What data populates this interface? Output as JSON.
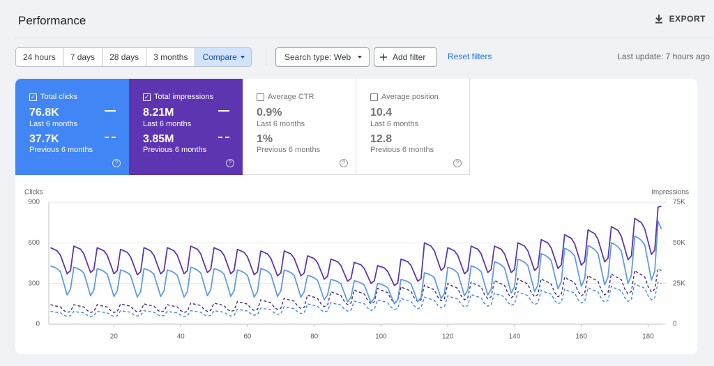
{
  "header": {
    "title": "Performance",
    "export": "EXPORT"
  },
  "toolbar": {
    "date_ranges": [
      "24 hours",
      "7 days",
      "28 days",
      "3 months",
      "Compare"
    ],
    "search_type": "Search type: Web",
    "add_filter": "Add filter",
    "reset_filters": "Reset filters",
    "last_update": "Last update: 7 hours ago"
  },
  "metrics": [
    {
      "label": "Total clicks",
      "value": "76.8K",
      "period": "Last 6 months",
      "previous_value": "37.7K",
      "previous_period": "Previous 6 months",
      "selected": true,
      "color": "#4285f4"
    },
    {
      "label": "Total impressions",
      "value": "8.21M",
      "period": "Last 6 months",
      "previous_value": "3.85M",
      "previous_period": "Previous 6 months",
      "selected": true,
      "color": "#5e35b1"
    },
    {
      "label": "Average CTR",
      "value": "0.9%",
      "period": "Last 6 months",
      "previous_value": "1%",
      "previous_period": "Previous 6 months",
      "selected": false
    },
    {
      "label": "Average position",
      "value": "10.4",
      "period": "Last 6 months",
      "previous_value": "12.8",
      "previous_period": "Previous 6 months",
      "selected": false
    }
  ],
  "chart_data": {
    "type": "line",
    "y_label": "Clicks",
    "y2_label": "Impressions",
    "grid": true,
    "xlim": [
      0.5,
      184.5
    ],
    "xticks": [
      20,
      40,
      60,
      80,
      100,
      120,
      140,
      160,
      180
    ],
    "ylim": [
      0,
      900
    ],
    "yticks": [
      0,
      300,
      600,
      900
    ],
    "y2lim": [
      0,
      75000
    ],
    "y2ticks": [
      0,
      {
        "value": 25000,
        "label": "25K"
      },
      {
        "value": 50000,
        "label": "50K"
      },
      {
        "value": 75000,
        "label": "75K"
      }
    ],
    "x": [
      1,
      2,
      3,
      4,
      5,
      6,
      7,
      8,
      9,
      10,
      11,
      12,
      13,
      14,
      15,
      16,
      17,
      18,
      19,
      20,
      21,
      22,
      23,
      24,
      25,
      26,
      27,
      28,
      29,
      30,
      31,
      32,
      33,
      34,
      35,
      36,
      37,
      38,
      39,
      40,
      41,
      42,
      43,
      44,
      45,
      46,
      47,
      48,
      49,
      50,
      51,
      52,
      53,
      54,
      55,
      56,
      57,
      58,
      59,
      60,
      61,
      62,
      63,
      64,
      65,
      66,
      67,
      68,
      69,
      70,
      71,
      72,
      73,
      74,
      75,
      76,
      77,
      78,
      79,
      80,
      81,
      82,
      83,
      84,
      85,
      86,
      87,
      88,
      89,
      90,
      91,
      92,
      93,
      94,
      95,
      96,
      97,
      98,
      99,
      100,
      101,
      102,
      103,
      104,
      105,
      106,
      107,
      108,
      109,
      110,
      111,
      112,
      113,
      114,
      115,
      116,
      117,
      118,
      119,
      120,
      121,
      122,
      123,
      124,
      125,
      126,
      127,
      128,
      129,
      130,
      131,
      132,
      133,
      134,
      135,
      136,
      137,
      138,
      139,
      140,
      141,
      142,
      143,
      144,
      145,
      146,
      147,
      148,
      149,
      150,
      151,
      152,
      153,
      154,
      155,
      156,
      157,
      158,
      159,
      160,
      161,
      162,
      163,
      164,
      165,
      166,
      167,
      168,
      169,
      170,
      171,
      172,
      173,
      174,
      175,
      176,
      177,
      178,
      179,
      180,
      181,
      182,
      183,
      184
    ],
    "series": [
      {
        "color": "#3f2a8c",
        "style": "dashed",
        "axis": "y2",
        "values": [
          12000,
          11400,
          11000,
          10600,
          8400,
          7200,
          7800,
          12000,
          11400,
          11000,
          10600,
          8400,
          7200,
          7800,
          12000,
          11400,
          11000,
          10600,
          8400,
          7200,
          7800,
          12500,
          11900,
          11500,
          11000,
          8800,
          7500,
          8100,
          12500,
          11900,
          11500,
          11000,
          8800,
          7500,
          8100,
          12000,
          11400,
          11000,
          10600,
          8400,
          7200,
          7800,
          13000,
          12400,
          12000,
          11400,
          9100,
          7800,
          8500,
          13000,
          12400,
          12000,
          11400,
          9100,
          7800,
          8500,
          14000,
          13300,
          12900,
          12300,
          9800,
          8400,
          9100,
          15000,
          14300,
          13800,
          13200,
          10500,
          9000,
          9800,
          16000,
          15200,
          14700,
          14100,
          11200,
          9600,
          10400,
          18000,
          17100,
          16600,
          15800,
          12600,
          10800,
          11700,
          20000,
          19000,
          18400,
          17600,
          14000,
          12000,
          13000,
          21000,
          20000,
          19300,
          18500,
          14700,
          12600,
          13700,
          22000,
          20900,
          20200,
          19400,
          15400,
          13200,
          14300,
          23000,
          21900,
          21200,
          20200,
          16100,
          13800,
          15000,
          24000,
          22800,
          22100,
          21100,
          16800,
          14400,
          15600,
          25000,
          23800,
          23000,
          22000,
          17500,
          15000,
          16300,
          26000,
          24700,
          23900,
          22900,
          18200,
          15600,
          16900,
          27000,
          25700,
          24800,
          23800,
          18900,
          16200,
          17600,
          28000,
          26600,
          25800,
          24600,
          19600,
          16800,
          18200,
          28000,
          26600,
          25800,
          24600,
          19600,
          16800,
          18200,
          29000,
          27600,
          26700,
          25500,
          20300,
          17400,
          18900,
          30000,
          28500,
          27600,
          26400,
          21000,
          18000,
          19500,
          31000,
          29500,
          28500,
          27300,
          21700,
          18600,
          20200,
          33000,
          31400,
          30400,
          29000,
          23100,
          19800,
          21500,
          34000,
          33000
        ]
      },
      {
        "color": "#4285f4",
        "style": "dashed",
        "axis": "y",
        "values": [
          95,
          90,
          87,
          84,
          67,
          57,
          62,
          95,
          90,
          87,
          84,
          67,
          57,
          62,
          95,
          90,
          87,
          84,
          67,
          57,
          62,
          100,
          95,
          92,
          88,
          70,
          60,
          65,
          100,
          95,
          92,
          88,
          70,
          60,
          65,
          95,
          90,
          87,
          84,
          67,
          57,
          62,
          100,
          95,
          92,
          88,
          70,
          60,
          65,
          100,
          95,
          92,
          88,
          70,
          60,
          65,
          110,
          105,
          101,
          97,
          77,
          66,
          72,
          120,
          114,
          110,
          106,
          84,
          72,
          78,
          130,
          124,
          120,
          114,
          91,
          78,
          85,
          150,
          143,
          138,
          132,
          105,
          90,
          98,
          160,
          152,
          147,
          141,
          112,
          96,
          104,
          170,
          162,
          156,
          150,
          119,
          102,
          111,
          180,
          171,
          166,
          158,
          126,
          108,
          117,
          190,
          181,
          175,
          167,
          133,
          114,
          124,
          200,
          190,
          184,
          176,
          140,
          120,
          130,
          210,
          200,
          193,
          185,
          147,
          126,
          137,
          220,
          209,
          202,
          194,
          154,
          132,
          143,
          230,
          219,
          212,
          202,
          161,
          138,
          150,
          240,
          228,
          221,
          211,
          168,
          144,
          156,
          250,
          238,
          230,
          220,
          175,
          150,
          163,
          260,
          247,
          239,
          229,
          182,
          156,
          169,
          270,
          257,
          248,
          238,
          189,
          162,
          176,
          280,
          266,
          258,
          246,
          196,
          168,
          182,
          300,
          285,
          276,
          264,
          210,
          180,
          195,
          310,
          300
        ]
      },
      {
        "color": "#5e9be8",
        "style": "solid",
        "axis": "y",
        "values": [
          430,
          421,
          409,
          387,
          301,
          215,
          258,
          420,
          412,
          399,
          378,
          294,
          210,
          252,
          410,
          402,
          390,
          369,
          287,
          205,
          246,
          400,
          392,
          380,
          360,
          280,
          200,
          240,
          410,
          402,
          390,
          369,
          287,
          205,
          246,
          400,
          392,
          380,
          360,
          280,
          200,
          240,
          420,
          412,
          399,
          378,
          294,
          210,
          252,
          410,
          402,
          390,
          369,
          287,
          205,
          246,
          400,
          392,
          380,
          360,
          280,
          200,
          240,
          410,
          402,
          390,
          369,
          287,
          205,
          246,
          400,
          392,
          380,
          360,
          280,
          200,
          240,
          360,
          353,
          342,
          324,
          252,
          180,
          216,
          330,
          323,
          314,
          297,
          231,
          165,
          198,
          320,
          314,
          304,
          288,
          224,
          160,
          192,
          300,
          294,
          285,
          270,
          210,
          150,
          180,
          330,
          323,
          314,
          297,
          231,
          165,
          198,
          380,
          372,
          361,
          342,
          266,
          190,
          228,
          420,
          412,
          399,
          378,
          294,
          210,
          252,
          430,
          421,
          409,
          387,
          301,
          215,
          258,
          460,
          451,
          437,
          414,
          322,
          230,
          276,
          480,
          470,
          456,
          432,
          336,
          240,
          288,
          520,
          510,
          494,
          468,
          364,
          260,
          312,
          560,
          549,
          532,
          504,
          392,
          280,
          336,
          580,
          568,
          551,
          522,
          406,
          290,
          348,
          600,
          588,
          570,
          540,
          420,
          300,
          360,
          650,
          637,
          618,
          585,
          455,
          325,
          390,
          760,
          700
        ]
      },
      {
        "color": "#5e35b1",
        "style": "solid",
        "axis": "y2",
        "values": [
          47000,
          46100,
          45100,
          42300,
          36700,
          31000,
          32900,
          48000,
          47000,
          46100,
          43200,
          37400,
          31700,
          33600,
          47000,
          46100,
          45100,
          42300,
          36700,
          31000,
          32900,
          46000,
          45100,
          44200,
          41400,
          35900,
          30400,
          32200,
          47000,
          46100,
          45100,
          42300,
          36700,
          31000,
          32900,
          47000,
          46100,
          45100,
          42300,
          36700,
          31000,
          32900,
          48000,
          47000,
          46100,
          43200,
          37400,
          31700,
          33600,
          47000,
          46100,
          45100,
          42300,
          36700,
          31000,
          32900,
          46000,
          45100,
          44200,
          41400,
          35900,
          30400,
          32200,
          45000,
          44100,
          43200,
          40500,
          35100,
          29700,
          31500,
          45000,
          44100,
          43200,
          40500,
          35100,
          29700,
          31500,
          42000,
          41200,
          40300,
          37800,
          32800,
          27700,
          29400,
          40000,
          39200,
          38400,
          36000,
          31200,
          26400,
          28000,
          38000,
          37200,
          36500,
          34200,
          29600,
          25100,
          26600,
          36000,
          35300,
          34600,
          32400,
          28100,
          23800,
          25200,
          40000,
          39200,
          38400,
          36000,
          31200,
          26400,
          28000,
          50000,
          49000,
          48000,
          45000,
          39000,
          33000,
          35000,
          47000,
          46100,
          45100,
          42300,
          36700,
          31000,
          32900,
          48000,
          47000,
          46100,
          43200,
          37400,
          31700,
          33600,
          48000,
          47000,
          46100,
          43200,
          37400,
          31700,
          33600,
          50000,
          49000,
          48000,
          45000,
          39000,
          33000,
          35000,
          52000,
          51000,
          49900,
          46800,
          40600,
          34300,
          36400,
          55000,
          53900,
          52800,
          49500,
          42900,
          36300,
          38500,
          58000,
          56800,
          55700,
          52200,
          45200,
          38300,
          40600,
          60000,
          58800,
          57600,
          54000,
          46800,
          39600,
          42000,
          65000,
          63700,
          62400,
          58500,
          50700,
          42900,
          45500,
          72000,
          72500
        ]
      }
    ]
  }
}
